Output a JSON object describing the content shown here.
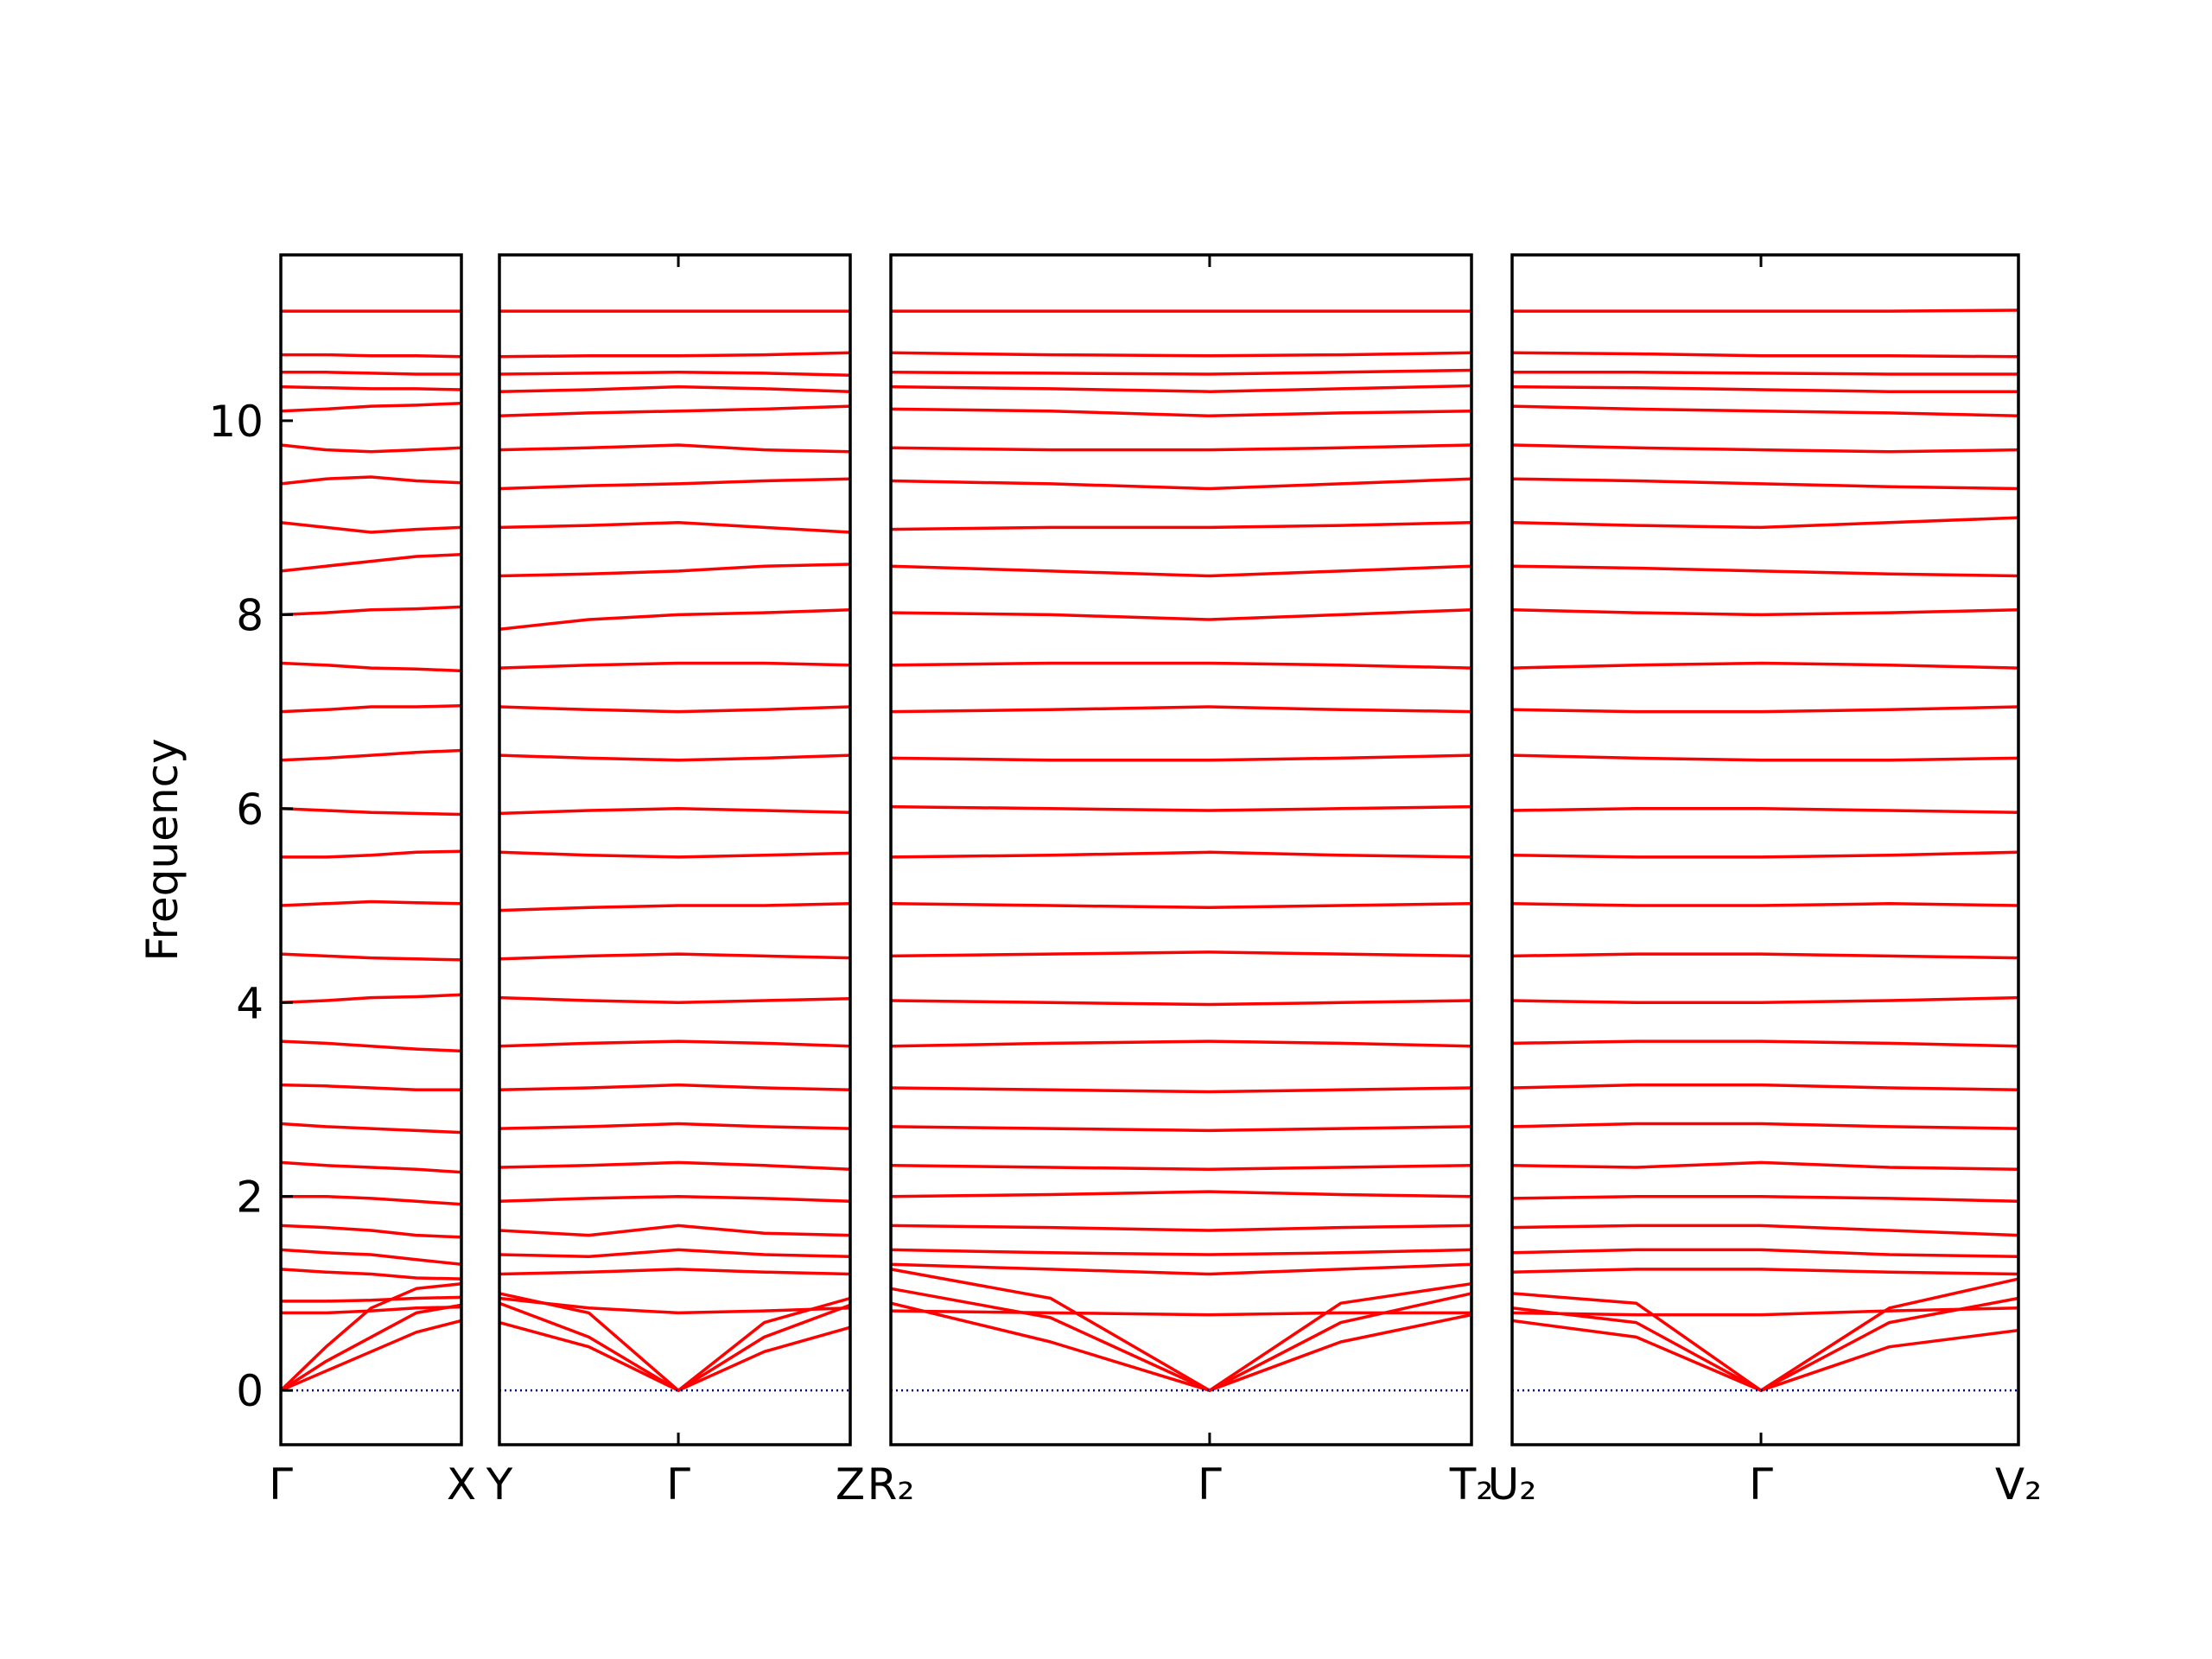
{
  "chart_data": [
    {
      "type": "line",
      "ylabel": "Frequency",
      "color": "#ff0000",
      "zero_line": {
        "value": 0,
        "color": "#00008b"
      },
      "ylim": [
        -0.56,
        11.71
      ],
      "yticks": [
        0,
        2,
        4,
        6,
        8,
        10
      ],
      "xlim": [
        0,
        1
      ],
      "xticks": [
        {
          "value": 0,
          "label": "Γ"
        },
        {
          "value": 1,
          "label": "X"
        }
      ],
      "x": [
        0,
        0.25,
        0.5,
        0.75,
        1
      ],
      "series": [
        {
          "values": [
            11.13,
            11.13,
            11.13,
            11.13,
            11.13
          ]
        },
        {
          "values": [
            10.68,
            10.68,
            10.67,
            10.67,
            10.66
          ]
        },
        {
          "values": [
            10.5,
            10.5,
            10.49,
            10.48,
            10.48
          ]
        },
        {
          "values": [
            10.35,
            10.34,
            10.33,
            10.33,
            10.32
          ]
        },
        {
          "values": [
            10.1,
            10.12,
            10.15,
            10.16,
            10.18
          ]
        },
        {
          "values": [
            9.75,
            9.7,
            9.68,
            9.7,
            9.72
          ]
        },
        {
          "values": [
            9.35,
            9.4,
            9.42,
            9.38,
            9.36
          ]
        },
        {
          "values": [
            8.95,
            8.9,
            8.85,
            8.88,
            8.9
          ]
        },
        {
          "values": [
            8.45,
            8.5,
            8.55,
            8.6,
            8.62
          ]
        },
        {
          "values": [
            8.0,
            8.02,
            8.05,
            8.06,
            8.08
          ]
        },
        {
          "values": [
            7.5,
            7.48,
            7.45,
            7.44,
            7.42
          ]
        },
        {
          "values": [
            7.0,
            7.02,
            7.05,
            7.05,
            7.06
          ]
        },
        {
          "values": [
            6.5,
            6.52,
            6.55,
            6.58,
            6.6
          ]
        },
        {
          "values": [
            6.0,
            5.98,
            5.96,
            5.95,
            5.94
          ]
        },
        {
          "values": [
            5.5,
            5.5,
            5.52,
            5.55,
            5.56
          ]
        },
        {
          "values": [
            5.0,
            5.02,
            5.04,
            5.03,
            5.02
          ]
        },
        {
          "values": [
            4.5,
            4.48,
            4.46,
            4.45,
            4.44
          ]
        },
        {
          "values": [
            4.0,
            4.02,
            4.05,
            4.06,
            4.08
          ]
        },
        {
          "values": [
            3.6,
            3.58,
            3.55,
            3.52,
            3.5
          ]
        },
        {
          "values": [
            3.15,
            3.14,
            3.12,
            3.1,
            3.1
          ]
        },
        {
          "values": [
            2.75,
            2.72,
            2.7,
            2.68,
            2.66
          ]
        },
        {
          "values": [
            2.35,
            2.32,
            2.3,
            2.28,
            2.25
          ]
        },
        {
          "values": [
            2.0,
            2.0,
            1.98,
            1.95,
            1.92
          ]
        },
        {
          "values": [
            1.7,
            1.68,
            1.65,
            1.6,
            1.58
          ]
        },
        {
          "values": [
            1.45,
            1.42,
            1.4,
            1.35,
            1.3
          ]
        },
        {
          "values": [
            1.25,
            1.22,
            1.2,
            1.16,
            1.15
          ]
        },
        {
          "values": [
            0.92,
            0.92,
            0.93,
            0.95,
            0.96
          ]
        },
        {
          "values": [
            0.8,
            0.8,
            0.82,
            0.85,
            0.86
          ]
        },
        {
          "values": [
            0,
            0.2,
            0.4,
            0.6,
            0.72
          ]
        },
        {
          "values": [
            0,
            0.3,
            0.55,
            0.8,
            0.88
          ]
        },
        {
          "values": [
            0,
            0.45,
            0.85,
            1.05,
            1.1
          ]
        }
      ]
    },
    {
      "type": "line",
      "color": "#ff0000",
      "zero_line": {
        "value": 0,
        "color": "#00008b"
      },
      "ylim": [
        -0.56,
        11.71
      ],
      "xlim": [
        0,
        1
      ],
      "xticks": [
        {
          "value": 0,
          "label": "Y"
        },
        {
          "value": 0.51,
          "label": "Γ"
        },
        {
          "value": 1,
          "label": "Z"
        }
      ],
      "x": [
        0,
        0.255,
        0.51,
        0.755,
        1
      ],
      "series": [
        {
          "values": [
            11.13,
            11.13,
            11.13,
            11.13,
            11.13
          ]
        },
        {
          "values": [
            10.66,
            10.67,
            10.67,
            10.68,
            10.7
          ]
        },
        {
          "values": [
            10.48,
            10.49,
            10.5,
            10.49,
            10.47
          ]
        },
        {
          "values": [
            10.3,
            10.32,
            10.35,
            10.33,
            10.3
          ]
        },
        {
          "values": [
            10.05,
            10.08,
            10.1,
            10.12,
            10.15
          ]
        },
        {
          "values": [
            9.7,
            9.72,
            9.75,
            9.7,
            9.68
          ]
        },
        {
          "values": [
            9.3,
            9.33,
            9.35,
            9.38,
            9.4
          ]
        },
        {
          "values": [
            8.9,
            8.92,
            8.95,
            8.9,
            8.85
          ]
        },
        {
          "values": [
            8.4,
            8.42,
            8.45,
            8.5,
            8.52
          ]
        },
        {
          "values": [
            7.85,
            7.95,
            8.0,
            8.02,
            8.05
          ]
        },
        {
          "values": [
            7.45,
            7.48,
            7.5,
            7.5,
            7.48
          ]
        },
        {
          "values": [
            7.05,
            7.02,
            7.0,
            7.02,
            7.05
          ]
        },
        {
          "values": [
            6.55,
            6.52,
            6.5,
            6.52,
            6.55
          ]
        },
        {
          "values": [
            5.95,
            5.98,
            6.0,
            5.98,
            5.96
          ]
        },
        {
          "values": [
            5.55,
            5.52,
            5.5,
            5.52,
            5.54
          ]
        },
        {
          "values": [
            4.95,
            4.98,
            5.0,
            5.0,
            5.02
          ]
        },
        {
          "values": [
            4.45,
            4.48,
            4.5,
            4.48,
            4.46
          ]
        },
        {
          "values": [
            4.05,
            4.02,
            4.0,
            4.02,
            4.04
          ]
        },
        {
          "values": [
            3.55,
            3.58,
            3.6,
            3.58,
            3.55
          ]
        },
        {
          "values": [
            3.1,
            3.12,
            3.15,
            3.12,
            3.1
          ]
        },
        {
          "values": [
            2.7,
            2.72,
            2.75,
            2.72,
            2.7
          ]
        },
        {
          "values": [
            2.3,
            2.32,
            2.35,
            2.32,
            2.28
          ]
        },
        {
          "values": [
            1.95,
            1.98,
            2.0,
            1.98,
            1.95
          ]
        },
        {
          "values": [
            1.65,
            1.6,
            1.7,
            1.62,
            1.6
          ]
        },
        {
          "values": [
            1.4,
            1.38,
            1.45,
            1.4,
            1.38
          ]
        },
        {
          "values": [
            1.2,
            1.22,
            1.25,
            1.22,
            1.2
          ]
        },
        {
          "values": [
            0.95,
            0.85,
            0.8,
            0.82,
            0.85
          ]
        },
        {
          "values": [
            0.7,
            0.45,
            0,
            0.4,
            0.65
          ]
        },
        {
          "values": [
            0.9,
            0.55,
            0,
            0.55,
            0.88
          ]
        },
        {
          "values": [
            1.0,
            0.8,
            0,
            0.7,
            0.95
          ]
        }
      ]
    },
    {
      "type": "line",
      "color": "#ff0000",
      "zero_line": {
        "value": 0,
        "color": "#00008b"
      },
      "ylim": [
        -0.56,
        11.71
      ],
      "xlim": [
        0,
        1
      ],
      "xticks": [
        {
          "value": 0,
          "label": "R₂"
        },
        {
          "value": 0.549,
          "label": "Γ"
        },
        {
          "value": 1,
          "label": "T₂"
        }
      ],
      "x": [
        0,
        0.275,
        0.549,
        0.775,
        1
      ],
      "series": [
        {
          "values": [
            11.13,
            11.13,
            11.13,
            11.13,
            11.13
          ]
        },
        {
          "values": [
            10.7,
            10.68,
            10.67,
            10.68,
            10.7
          ]
        },
        {
          "values": [
            10.5,
            10.49,
            10.48,
            10.5,
            10.52
          ]
        },
        {
          "values": [
            10.35,
            10.33,
            10.3,
            10.33,
            10.36
          ]
        },
        {
          "values": [
            10.12,
            10.1,
            10.05,
            10.08,
            10.1
          ]
        },
        {
          "values": [
            9.72,
            9.7,
            9.7,
            9.72,
            9.75
          ]
        },
        {
          "values": [
            9.38,
            9.35,
            9.3,
            9.35,
            9.4
          ]
        },
        {
          "values": [
            8.88,
            8.9,
            8.9,
            8.92,
            8.95
          ]
        },
        {
          "values": [
            8.5,
            8.45,
            8.4,
            8.45,
            8.5
          ]
        },
        {
          "values": [
            8.02,
            8.0,
            7.95,
            8.0,
            8.05
          ]
        },
        {
          "values": [
            7.48,
            7.5,
            7.5,
            7.48,
            7.45
          ]
        },
        {
          "values": [
            7.0,
            7.02,
            7.05,
            7.02,
            7.0
          ]
        },
        {
          "values": [
            6.52,
            6.5,
            6.5,
            6.52,
            6.55
          ]
        },
        {
          "values": [
            6.02,
            6.0,
            5.98,
            6.0,
            6.02
          ]
        },
        {
          "values": [
            5.5,
            5.52,
            5.55,
            5.52,
            5.5
          ]
        },
        {
          "values": [
            5.02,
            5.0,
            4.98,
            5.0,
            5.02
          ]
        },
        {
          "values": [
            4.48,
            4.5,
            4.52,
            4.5,
            4.48
          ]
        },
        {
          "values": [
            4.02,
            4.0,
            3.98,
            4.0,
            4.02
          ]
        },
        {
          "values": [
            3.55,
            3.58,
            3.6,
            3.58,
            3.55
          ]
        },
        {
          "values": [
            3.12,
            3.1,
            3.08,
            3.1,
            3.12
          ]
        },
        {
          "values": [
            2.72,
            2.7,
            2.68,
            2.7,
            2.72
          ]
        },
        {
          "values": [
            2.32,
            2.3,
            2.28,
            2.3,
            2.32
          ]
        },
        {
          "values": [
            2.0,
            2.02,
            2.05,
            2.02,
            2.0
          ]
        },
        {
          "values": [
            1.7,
            1.68,
            1.65,
            1.68,
            1.7
          ]
        },
        {
          "values": [
            1.45,
            1.42,
            1.4,
            1.42,
            1.45
          ]
        },
        {
          "values": [
            1.3,
            1.25,
            1.2,
            1.25,
            1.3
          ]
        },
        {
          "values": [
            0.82,
            0.8,
            0.78,
            0.8,
            0.8
          ]
        },
        {
          "values": [
            0.9,
            0.5,
            0,
            0.5,
            0.78
          ]
        },
        {
          "values": [
            1.05,
            0.75,
            0,
            0.7,
            1.0
          ]
        },
        {
          "values": [
            1.25,
            0.95,
            0,
            0.9,
            1.1
          ]
        }
      ]
    },
    {
      "type": "line",
      "color": "#ff0000",
      "zero_line": {
        "value": 0,
        "color": "#00008b"
      },
      "ylim": [
        -0.56,
        11.71
      ],
      "xlim": [
        0,
        1
      ],
      "xticks": [
        {
          "value": 0,
          "label": "U₂"
        },
        {
          "value": 0.4915,
          "label": "Γ"
        },
        {
          "value": 1,
          "label": "V₂"
        }
      ],
      "x": [
        0,
        0.245,
        0.4915,
        0.745,
        1
      ],
      "series": [
        {
          "values": [
            11.13,
            11.13,
            11.13,
            11.13,
            11.14
          ]
        },
        {
          "values": [
            10.7,
            10.69,
            10.67,
            10.67,
            10.66
          ]
        },
        {
          "values": [
            10.5,
            10.5,
            10.49,
            10.48,
            10.48
          ]
        },
        {
          "values": [
            10.35,
            10.34,
            10.32,
            10.3,
            10.3
          ]
        },
        {
          "values": [
            10.15,
            10.12,
            10.1,
            10.08,
            10.05
          ]
        },
        {
          "values": [
            9.75,
            9.72,
            9.7,
            9.68,
            9.7
          ]
        },
        {
          "values": [
            9.4,
            9.38,
            9.35,
            9.32,
            9.3
          ]
        },
        {
          "values": [
            8.95,
            8.92,
            8.9,
            8.95,
            9.0
          ]
        },
        {
          "values": [
            8.5,
            8.48,
            8.45,
            8.42,
            8.4
          ]
        },
        {
          "values": [
            8.05,
            8.02,
            8.0,
            8.02,
            8.05
          ]
        },
        {
          "values": [
            7.45,
            7.48,
            7.5,
            7.48,
            7.45
          ]
        },
        {
          "values": [
            7.02,
            7.0,
            7.0,
            7.02,
            7.05
          ]
        },
        {
          "values": [
            6.55,
            6.52,
            6.5,
            6.5,
            6.52
          ]
        },
        {
          "values": [
            5.98,
            6.0,
            6.0,
            5.98,
            5.96
          ]
        },
        {
          "values": [
            5.52,
            5.5,
            5.5,
            5.52,
            5.55
          ]
        },
        {
          "values": [
            5.02,
            5.0,
            5.0,
            5.02,
            5.0
          ]
        },
        {
          "values": [
            4.48,
            4.5,
            4.5,
            4.48,
            4.46
          ]
        },
        {
          "values": [
            4.02,
            4.0,
            4.0,
            4.02,
            4.05
          ]
        },
        {
          "values": [
            3.58,
            3.6,
            3.6,
            3.58,
            3.55
          ]
        },
        {
          "values": [
            3.12,
            3.15,
            3.15,
            3.12,
            3.1
          ]
        },
        {
          "values": [
            2.72,
            2.75,
            2.75,
            2.72,
            2.7
          ]
        },
        {
          "values": [
            2.32,
            2.3,
            2.35,
            2.3,
            2.28
          ]
        },
        {
          "values": [
            1.98,
            2.0,
            2.0,
            1.98,
            1.95
          ]
        },
        {
          "values": [
            1.68,
            1.7,
            1.7,
            1.65,
            1.6
          ]
        },
        {
          "values": [
            1.42,
            1.45,
            1.45,
            1.4,
            1.38
          ]
        },
        {
          "values": [
            1.22,
            1.25,
            1.25,
            1.22,
            1.2
          ]
        },
        {
          "values": [
            0.8,
            0.78,
            0.78,
            0.82,
            0.85
          ]
        },
        {
          "values": [
            0.72,
            0.55,
            0,
            0.45,
            0.62
          ]
        },
        {
          "values": [
            0.85,
            0.7,
            0,
            0.7,
            0.95
          ]
        },
        {
          "values": [
            1.0,
            0.9,
            0,
            0.85,
            1.15
          ]
        }
      ]
    }
  ]
}
